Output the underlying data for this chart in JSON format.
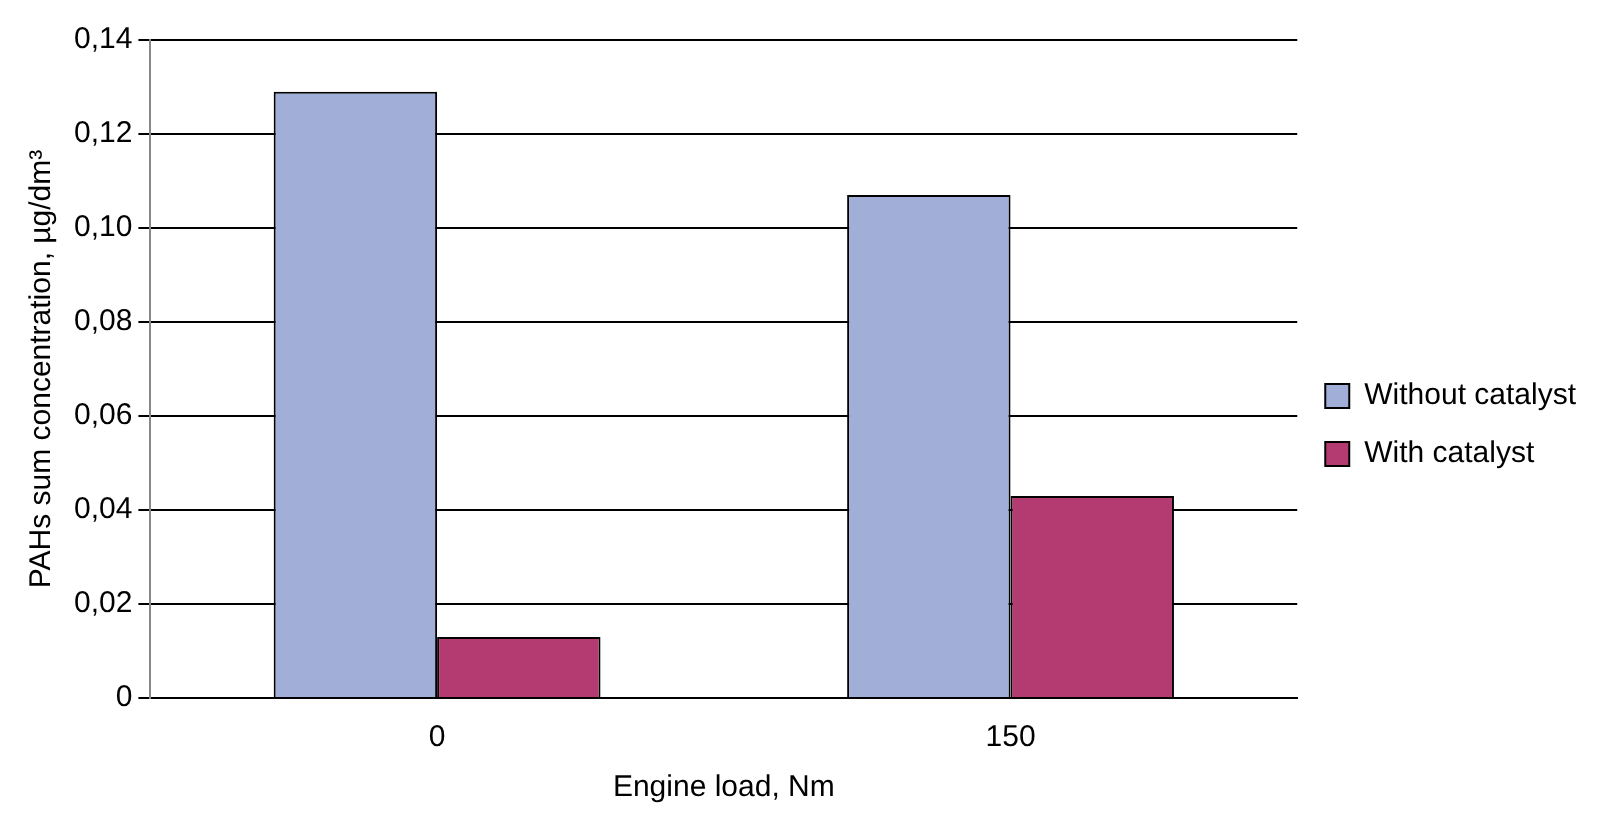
{
  "chart_data": {
    "type": "bar",
    "xlabel": "Engine load, Nm",
    "ylabel": "PAHs sum concentration, µg/dm³",
    "categories": [
      "0",
      "150"
    ],
    "series": [
      {
        "name": "Without catalyst",
        "color": "#a0aed8",
        "values": [
          0.129,
          0.107
        ]
      },
      {
        "name": "With catalyst",
        "color": "#b43a72",
        "values": [
          0.013,
          0.043
        ]
      }
    ],
    "ylim": [
      0,
      0.14
    ],
    "yticks": [
      {
        "value": 0,
        "label": "0"
      },
      {
        "value": 0.02,
        "label": "0,02"
      },
      {
        "value": 0.04,
        "label": "0,04"
      },
      {
        "value": 0.06,
        "label": "0,06"
      },
      {
        "value": 0.08,
        "label": "0,08"
      },
      {
        "value": 0.1,
        "label": "0,10"
      },
      {
        "value": 0.12,
        "label": "0,12"
      },
      {
        "value": 0.14,
        "label": "0,14"
      }
    ],
    "grid": "y",
    "legend": "right"
  }
}
